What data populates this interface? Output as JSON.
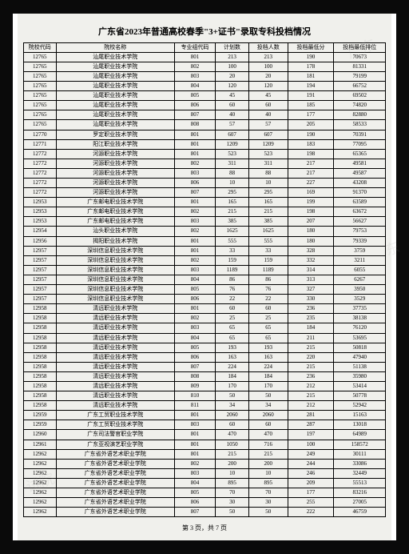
{
  "title": "广东省2023年普通高校春季\"3+证书\"录取专科投档情况",
  "headers": [
    "院校代码",
    "院校名称",
    "专业组代码",
    "计划数",
    "投档人数",
    "投档最低分",
    "投档最低排位"
  ],
  "rows": [
    [
      "12765",
      "汕尾职业技术学院",
      "801",
      "213",
      "213",
      "190",
      "70673"
    ],
    [
      "12765",
      "汕尾职业技术学院",
      "802",
      "100",
      "100",
      "178",
      "81331"
    ],
    [
      "12765",
      "汕尾职业技术学院",
      "803",
      "20",
      "20",
      "181",
      "79199"
    ],
    [
      "12765",
      "汕尾职业技术学院",
      "804",
      "120",
      "120",
      "194",
      "66752"
    ],
    [
      "12765",
      "汕尾职业技术学院",
      "805",
      "45",
      "45",
      "191",
      "69502"
    ],
    [
      "12765",
      "汕尾职业技术学院",
      "806",
      "60",
      "60",
      "185",
      "74820"
    ],
    [
      "12765",
      "汕尾职业技术学院",
      "807",
      "40",
      "40",
      "177",
      "82880"
    ],
    [
      "12765",
      "汕尾职业技术学院",
      "808",
      "57",
      "57",
      "205",
      "58533"
    ],
    [
      "12770",
      "罗定职业技术学院",
      "801",
      "607",
      "607",
      "190",
      "70391"
    ],
    [
      "12771",
      "阳江职业技术学院",
      "801",
      "1209",
      "1209",
      "183",
      "77095"
    ],
    [
      "12772",
      "河源职业技术学院",
      "801",
      "523",
      "523",
      "198",
      "65365"
    ],
    [
      "12772",
      "河源职业技术学院",
      "802",
      "311",
      "311",
      "217",
      "49581"
    ],
    [
      "12772",
      "河源职业技术学院",
      "803",
      "88",
      "88",
      "217",
      "49587"
    ],
    [
      "12772",
      "河源职业技术学院",
      "806",
      "10",
      "10",
      "227",
      "43208"
    ],
    [
      "12772",
      "河源职业技术学院",
      "807",
      "295",
      "295",
      "169",
      "91370"
    ],
    [
      "12953",
      "广东邮电职业技术学院",
      "801",
      "165",
      "165",
      "199",
      "63589"
    ],
    [
      "12953",
      "广东邮电职业技术学院",
      "802",
      "215",
      "215",
      "198",
      "63672"
    ],
    [
      "12953",
      "广东邮电职业技术学院",
      "803",
      "385",
      "385",
      "207",
      "56627"
    ],
    [
      "12954",
      "汕头职业技术学院",
      "802",
      "1625",
      "1625",
      "180",
      "79753"
    ],
    [
      "12956",
      "揭阳职业技术学院",
      "801",
      "555",
      "555",
      "180",
      "79339"
    ],
    [
      "12957",
      "深圳信息职业技术学院",
      "801",
      "33",
      "33",
      "328",
      "3759"
    ],
    [
      "12957",
      "深圳信息职业技术学院",
      "802",
      "159",
      "159",
      "332",
      "3211"
    ],
    [
      "12957",
      "深圳信息职业技术学院",
      "803",
      "1189",
      "1189",
      "314",
      "6055"
    ],
    [
      "12957",
      "深圳信息职业技术学院",
      "804",
      "86",
      "86",
      "313",
      "6267"
    ],
    [
      "12957",
      "深圳信息职业技术学院",
      "805",
      "76",
      "76",
      "327",
      "3950"
    ],
    [
      "12957",
      "深圳信息职业技术学院",
      "806",
      "22",
      "22",
      "330",
      "3529"
    ],
    [
      "12958",
      "清远职业技术学院",
      "801",
      "60",
      "60",
      "236",
      "37735"
    ],
    [
      "12958",
      "清远职业技术学院",
      "802",
      "25",
      "25",
      "235",
      "38138"
    ],
    [
      "12958",
      "清远职业技术学院",
      "803",
      "65",
      "65",
      "184",
      "76120"
    ],
    [
      "12958",
      "清远职业技术学院",
      "804",
      "65",
      "65",
      "211",
      "53695"
    ],
    [
      "12958",
      "清远职业技术学院",
      "805",
      "193",
      "193",
      "215",
      "50818"
    ],
    [
      "12958",
      "清远职业技术学院",
      "806",
      "163",
      "163",
      "220",
      "47940"
    ],
    [
      "12958",
      "清远职业技术学院",
      "807",
      "224",
      "224",
      "215",
      "51138"
    ],
    [
      "12958",
      "清远职业技术学院",
      "808",
      "184",
      "184",
      "236",
      "35980"
    ],
    [
      "12958",
      "清远职业技术学院",
      "809",
      "170",
      "170",
      "212",
      "53414"
    ],
    [
      "12958",
      "清远职业技术学院",
      "810",
      "50",
      "50",
      "215",
      "50778"
    ],
    [
      "12958",
      "清远职业技术学院",
      "811",
      "34",
      "34",
      "212",
      "52942"
    ],
    [
      "12959",
      "广东工贸职业技术学院",
      "801",
      "2060",
      "2060",
      "281",
      "15163"
    ],
    [
      "12959",
      "广东工贸职业技术学院",
      "803",
      "60",
      "60",
      "287",
      "13018"
    ],
    [
      "12960",
      "广东司法警官职业学院",
      "801",
      "470",
      "470",
      "197",
      "64989"
    ],
    [
      "12961",
      "广东亚视演艺职业学院",
      "801",
      "1050",
      "716",
      "100",
      "158572"
    ],
    [
      "12962",
      "广东省外语艺术职业学院",
      "801",
      "215",
      "215",
      "249",
      "30111"
    ],
    [
      "12962",
      "广东省外语艺术职业学院",
      "802",
      "200",
      "200",
      "244",
      "33086"
    ],
    [
      "12962",
      "广东省外语艺术职业学院",
      "803",
      "10",
      "10",
      "246",
      "32449"
    ],
    [
      "12962",
      "广东省外语艺术职业学院",
      "804",
      "895",
      "895",
      "209",
      "55513"
    ],
    [
      "12962",
      "广东省外语艺术职业学院",
      "805",
      "70",
      "70",
      "177",
      "83216"
    ],
    [
      "12962",
      "广东省外语艺术职业学院",
      "806",
      "30",
      "30",
      "255",
      "27005"
    ],
    [
      "12962",
      "广东省外语艺术职业学院",
      "807",
      "50",
      "50",
      "222",
      "46759"
    ]
  ],
  "pager": "第 3 页，共 7 页",
  "colwidth": [
    "c0",
    "c1",
    "c2",
    "c3",
    "c4",
    "c5",
    "c6"
  ]
}
